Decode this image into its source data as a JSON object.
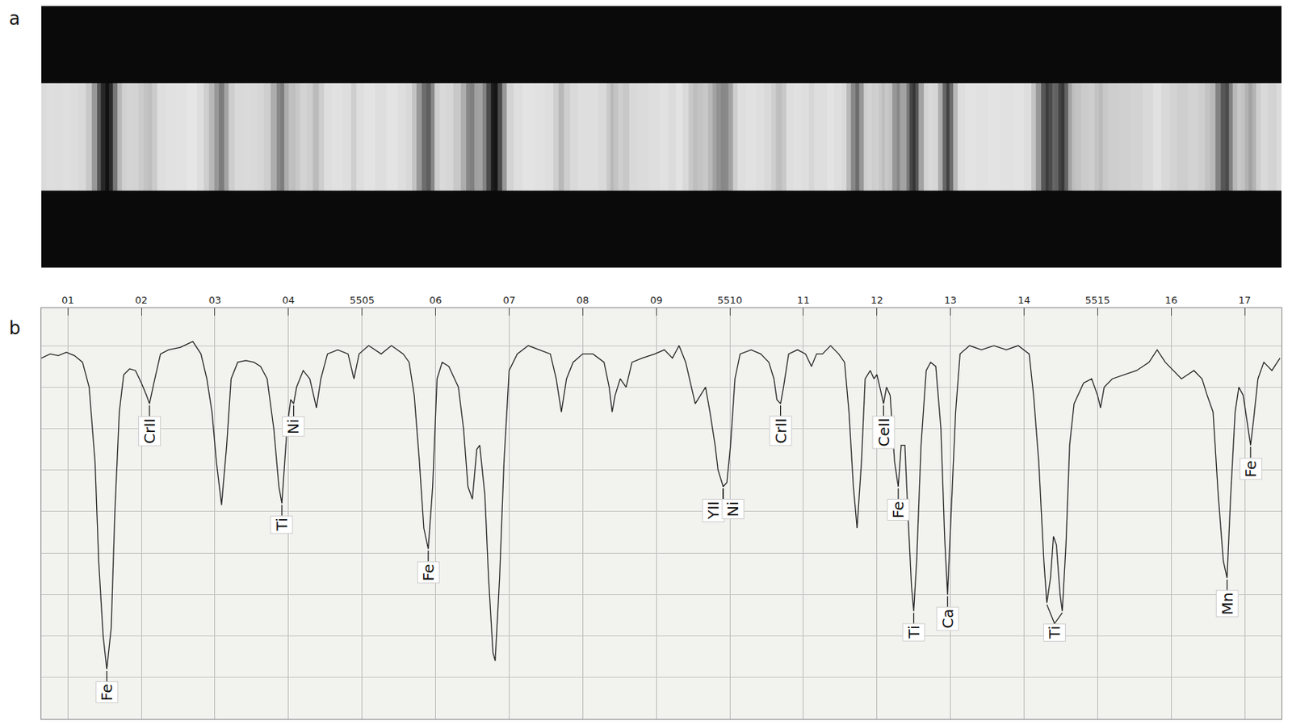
{
  "chart_data": {
    "type": "line",
    "panels": [
      "a",
      "b"
    ],
    "color": "#222222",
    "line_style": "solid",
    "grid": true,
    "tick_labels": "x",
    "xlim": [
      5500.64,
      5517.5
    ],
    "xticks": [
      {
        "value": 5501,
        "label": "01"
      },
      {
        "value": 5502,
        "label": "02"
      },
      {
        "value": 5503,
        "label": "03"
      },
      {
        "value": 5504,
        "label": "04"
      },
      5505,
      {
        "value": 5506,
        "label": "06"
      },
      {
        "value": 5507,
        "label": "07"
      },
      {
        "value": 5508,
        "label": "08"
      },
      {
        "value": 5509,
        "label": "09"
      },
      5510,
      {
        "value": 5511,
        "label": "11"
      },
      {
        "value": 5512,
        "label": "12"
      },
      {
        "value": 5513,
        "label": "13"
      },
      {
        "value": 5514,
        "label": "14"
      },
      5515,
      {
        "value": 5516,
        "label": "16"
      },
      {
        "value": 5517,
        "label": "17"
      }
    ],
    "ylim": [
      0,
      99
    ],
    "yticks": [
      10,
      20,
      30,
      40,
      50,
      60,
      70,
      80,
      90
    ],
    "x": [
      5500.64,
      5500.76,
      5500.87,
      5500.98,
      5501.09,
      5501.2,
      5501.29,
      5501.37,
      5501.42,
      5501.48,
      5501.53,
      5501.59,
      5501.64,
      5501.7,
      5501.76,
      5501.84,
      5501.92,
      5502.0,
      5502.07,
      5502.11,
      5502.17,
      5502.26,
      5502.37,
      5502.53,
      5502.7,
      5502.81,
      5502.89,
      5502.96,
      5503.02,
      5503.09,
      5503.16,
      5503.22,
      5503.31,
      5503.42,
      5503.53,
      5503.62,
      5503.71,
      5503.8,
      5503.87,
      5503.91,
      5503.98,
      5504.03,
      5504.07,
      5504.11,
      5504.2,
      5504.29,
      5504.38,
      5504.44,
      5504.53,
      5504.67,
      5504.81,
      5504.89,
      5504.96,
      5505.09,
      5505.26,
      5505.4,
      5505.56,
      5505.64,
      5505.71,
      5505.78,
      5505.84,
      5505.9,
      5505.96,
      5506.02,
      5506.09,
      5506.18,
      5506.31,
      5506.38,
      5506.44,
      5506.5,
      5506.56,
      5506.6,
      5506.67,
      5506.72,
      5506.78,
      5506.81,
      5506.87,
      5506.93,
      5507.0,
      5507.11,
      5507.26,
      5507.42,
      5507.56,
      5507.64,
      5507.71,
      5507.78,
      5507.87,
      5508.0,
      5508.14,
      5508.29,
      5508.36,
      5508.4,
      5508.44,
      5508.51,
      5508.59,
      5508.67,
      5508.81,
      5508.98,
      5509.11,
      5509.22,
      5509.31,
      5509.4,
      5509.48,
      5509.53,
      5509.6,
      5509.67,
      5509.73,
      5509.8,
      5509.84,
      5509.91,
      5509.96,
      5510.01,
      5510.07,
      5510.14,
      5510.29,
      5510.42,
      5510.53,
      5510.6,
      5510.64,
      5510.69,
      5510.73,
      5510.8,
      5510.92,
      5511.03,
      5511.11,
      5511.18,
      5511.26,
      5511.37,
      5511.48,
      5511.56,
      5511.62,
      5511.68,
      5511.73,
      5511.79,
      5511.84,
      5511.91,
      5511.96,
      5512.0,
      5512.04,
      5512.09,
      5512.13,
      5512.18,
      5512.24,
      5512.29,
      5512.33,
      5512.38,
      5512.42,
      5512.47,
      5512.5,
      5512.54,
      5512.6,
      5512.67,
      5512.73,
      5512.8,
      5512.87,
      5512.92,
      5512.96,
      5513.0,
      5513.07,
      5513.13,
      5513.26,
      5513.42,
      5513.59,
      5513.76,
      5513.92,
      5514.07,
      5514.13,
      5514.2,
      5514.27,
      5514.31,
      5514.36,
      5514.4,
      5514.44,
      5514.49,
      5514.52,
      5514.57,
      5514.62,
      5514.68,
      5514.73,
      5514.81,
      5514.92,
      5515.0,
      5515.04,
      5515.09,
      5515.2,
      5515.37,
      5515.53,
      5515.7,
      5515.81,
      5515.92,
      5516.03,
      5516.14,
      5516.31,
      5516.42,
      5516.49,
      5516.57,
      5516.64,
      5516.71,
      5516.76,
      5516.81,
      5516.87,
      5516.92,
      5516.98,
      5517.03,
      5517.08,
      5517.12,
      5517.18,
      5517.26,
      5517.37,
      5517.48
    ],
    "values": [
      87,
      88,
      87.6,
      88.4,
      87.6,
      86,
      80,
      62,
      38,
      20,
      12,
      22,
      50,
      74,
      83,
      84.4,
      84,
      81,
      78,
      76,
      81,
      88,
      89,
      89.6,
      91,
      88,
      82,
      74,
      62,
      51.6,
      66,
      82,
      86,
      86.4,
      86,
      85,
      82,
      70,
      56,
      52,
      70,
      77,
      76,
      80,
      84,
      82,
      75,
      82,
      88,
      89,
      88,
      82,
      88,
      90,
      88,
      90,
      88,
      86,
      78,
      62,
      46,
      41,
      56,
      82,
      86,
      85,
      80,
      70,
      56,
      53,
      65,
      66,
      54,
      34,
      16,
      14,
      34,
      62,
      84,
      88,
      90,
      89,
      88,
      82,
      74,
      82,
      86,
      88,
      88,
      86,
      80,
      74,
      78,
      82,
      80,
      86,
      87,
      88,
      89,
      87,
      90,
      86,
      80,
      76,
      78,
      80,
      74,
      66,
      60,
      56,
      57,
      66,
      82,
      88,
      89,
      88,
      86,
      82,
      77,
      76,
      80,
      88,
      89,
      88,
      85,
      88,
      88,
      90,
      88,
      86,
      74,
      56,
      46,
      62,
      82,
      84,
      82,
      83,
      80,
      76,
      80,
      78,
      62,
      56,
      66,
      66,
      50,
      32,
      26,
      38,
      66,
      84,
      86,
      85,
      70,
      44,
      30,
      46,
      74,
      88,
      90,
      89,
      90,
      89,
      90,
      88,
      78,
      62,
      38,
      28,
      34,
      44,
      42,
      30,
      26,
      42,
      66,
      76,
      78,
      81,
      82,
      78,
      75,
      80,
      82,
      83,
      84,
      86,
      89,
      86,
      84,
      82,
      84,
      82,
      78,
      74,
      54,
      38,
      34,
      54,
      74,
      80,
      78,
      72,
      66,
      72,
      82,
      86,
      84,
      87
    ],
    "line_labels": [
      {
        "text": "Fe",
        "x": [
          5501.53
        ]
      },
      {
        "text": "CrII",
        "x": [
          5502.11
        ]
      },
      {
        "text": "Ti",
        "x": [
          5503.91
        ]
      },
      {
        "text": "Ni",
        "x": [
          5504.07
        ]
      },
      {
        "text": "Fe",
        "x": [
          5505.9
        ]
      },
      {
        "text": "YII",
        "x": [
          5509.91
        ]
      },
      {
        "text": "Ni",
        "x": [
          5509.91
        ]
      },
      {
        "text": "CrII",
        "x": [
          5510.69
        ]
      },
      {
        "text": "CeII",
        "x": [
          5512.09
        ]
      },
      {
        "text": "Fe",
        "x": [
          5512.29
        ]
      },
      {
        "text": "Ti",
        "x": [
          5512.5
        ]
      },
      {
        "text": "Ca",
        "x": [
          5512.96
        ]
      },
      {
        "text": "Ti",
        "x": [
          5514.31,
          5514.52
        ]
      },
      {
        "text": "Mn",
        "x": [
          5516.76
        ]
      },
      {
        "text": "Fe",
        "x": [
          5517.08
        ]
      }
    ]
  }
}
